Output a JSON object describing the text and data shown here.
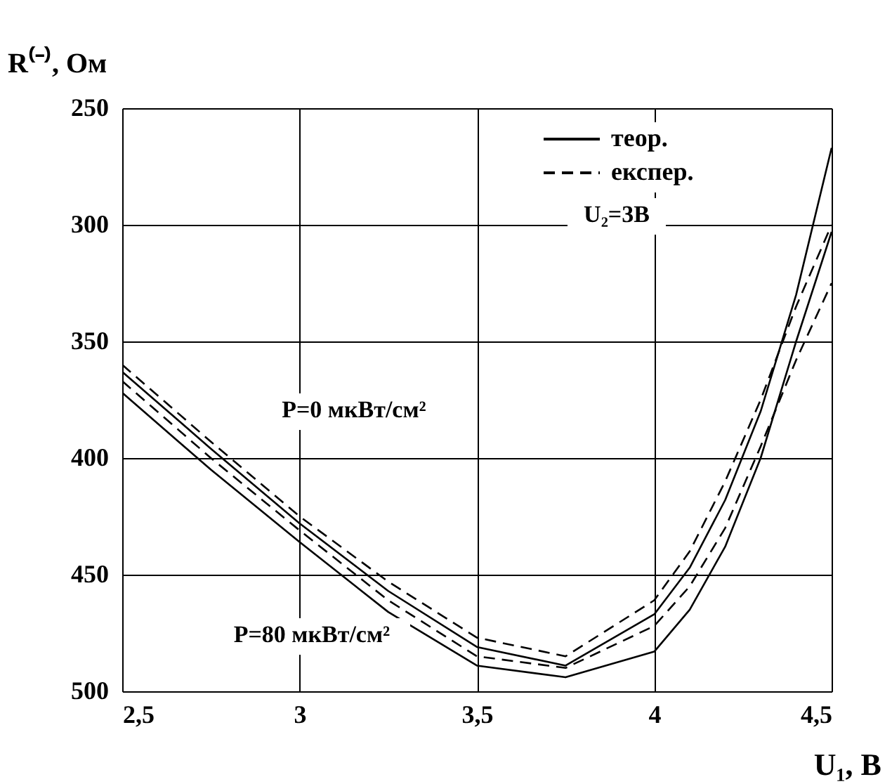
{
  "chart_data": {
    "type": "line",
    "xlabel": "U₁, В",
    "ylabel": "R⁽⁻⁾, Ом",
    "x": [
      2.5,
      2.75,
      3,
      3.25,
      3.5,
      3.75,
      4,
      4.1,
      4.2,
      4.3,
      4.4,
      4.5
    ],
    "series": [
      {
        "name": "теор.",
        "color": "#000000",
        "line_style": "solid",
        "values": [
          363,
          396,
          428,
          457,
          481,
          489,
          467,
          447,
          418,
          380,
          330,
          267
        ]
      },
      {
        "name": "експер.",
        "color": "#000000",
        "line_style": "dashed",
        "values": [
          360,
          393,
          425,
          453,
          477,
          485,
          461,
          440,
          410,
          375,
          335,
          300
        ]
      },
      {
        "color": "#000000",
        "line_style": "dashed",
        "values": [
          367,
          400,
          431,
          461,
          485,
          490,
          472,
          455,
          430,
          395,
          358,
          325
        ]
      },
      {
        "color": "#000000",
        "line_style": "solid",
        "values": [
          372,
          405,
          436,
          466,
          489,
          494,
          483,
          465,
          438,
          400,
          350,
          303
        ]
      }
    ],
    "annotations": [
      "P=0 мкВт/см²",
      "P=80 мкВт/см²",
      "U₂=3В"
    ],
    "xlim": [
      2.5,
      4.5
    ],
    "ylim": [
      500,
      250
    ],
    "xticks": [
      {
        "value": 2.5,
        "label": "2,5"
      },
      3,
      {
        "value": 3.5,
        "label": "3,5"
      },
      4,
      {
        "value": 4.5,
        "label": "4,5"
      }
    ],
    "yticks": [
      250,
      300,
      350,
      400,
      450,
      500
    ],
    "grid": true,
    "legend": "top right",
    "marker": "none"
  }
}
